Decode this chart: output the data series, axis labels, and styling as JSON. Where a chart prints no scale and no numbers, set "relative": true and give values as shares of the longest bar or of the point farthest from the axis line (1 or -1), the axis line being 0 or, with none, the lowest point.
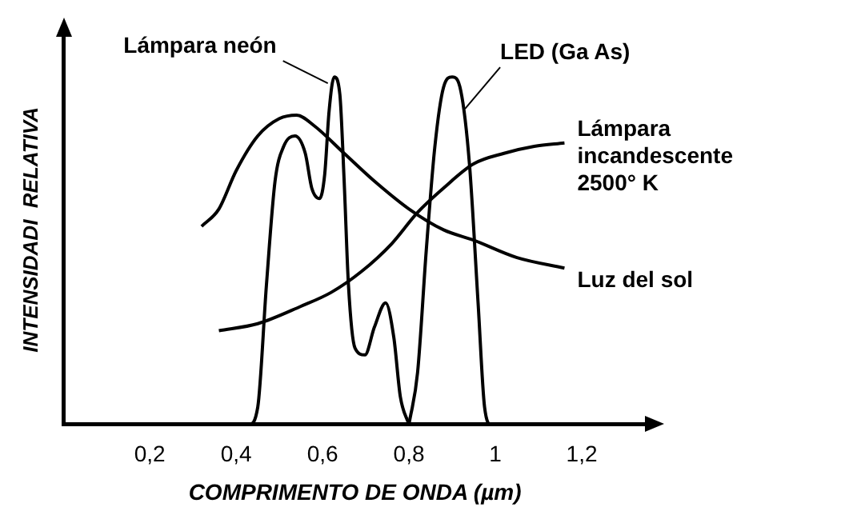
{
  "chart_data": {
    "type": "line",
    "relative": true,
    "xlabel": "COMPRIMENTO DE ONDA (µm)",
    "ylabel": "INTENSIDADI  RELATIVA",
    "xlim": [
      0,
      1.35
    ],
    "xticks": [
      {
        "value": 0.2,
        "label": "0,2"
      },
      {
        "value": 0.4,
        "label": "0,4"
      },
      {
        "value": 0.6,
        "label": "0,6"
      },
      {
        "value": 0.8,
        "label": "0,8"
      },
      {
        "value": 1,
        "label": "1"
      },
      {
        "value": 1.2,
        "label": "1,2"
      }
    ],
    "grid": false,
    "legend": false,
    "marker": "none",
    "line_style": "solid",
    "series": [
      {
        "name": "Lámpara neón",
        "color": "#000000",
        "x": [
          0.4,
          0.43,
          0.45,
          0.47,
          0.49,
          0.51,
          0.536,
          0.56,
          0.575,
          0.593,
          0.605,
          0.615,
          0.627,
          0.64,
          0.65,
          0.66,
          0.675,
          0.698,
          0.72,
          0.746,
          0.765,
          0.78,
          0.8
        ],
        "values": [
          0,
          0,
          0.05,
          0.4,
          0.7,
          0.8,
          0.83,
          0.78,
          0.68,
          0.65,
          0.72,
          0.9,
          1,
          0.95,
          0.7,
          0.4,
          0.22,
          0.2,
          0.28,
          0.35,
          0.25,
          0.08,
          0
        ]
      },
      {
        "name": "LED (Ga As)",
        "color": "#000000",
        "x": [
          0.8,
          0.82,
          0.84,
          0.86,
          0.88,
          0.9,
          0.92,
          0.94,
          0.96,
          0.975,
          0.99,
          1
        ],
        "values": [
          0,
          0.15,
          0.5,
          0.8,
          0.97,
          1,
          0.96,
          0.75,
          0.35,
          0.05,
          0,
          0
        ]
      },
      {
        "name": "Lámpara incandescente 2500° K",
        "color": "#000000",
        "x": [
          0.36,
          0.45,
          0.55,
          0.62,
          0.69,
          0.76,
          0.82,
          0.88,
          0.95,
          1.02,
          1.09,
          1.16
        ],
        "values": [
          0.27,
          0.29,
          0.34,
          0.38,
          0.44,
          0.52,
          0.61,
          0.68,
          0.75,
          0.78,
          0.8,
          0.81
        ]
      },
      {
        "name": "Luz del sol",
        "color": "#000000",
        "x": [
          0.32,
          0.36,
          0.4,
          0.45,
          0.5,
          0.54,
          0.58,
          0.65,
          0.72,
          0.8,
          0.88,
          0.95,
          1.05,
          1.16
        ],
        "values": [
          0.57,
          0.62,
          0.73,
          0.83,
          0.88,
          0.89,
          0.86,
          0.78,
          0.7,
          0.62,
          0.56,
          0.53,
          0.48,
          0.45
        ]
      }
    ]
  }
}
